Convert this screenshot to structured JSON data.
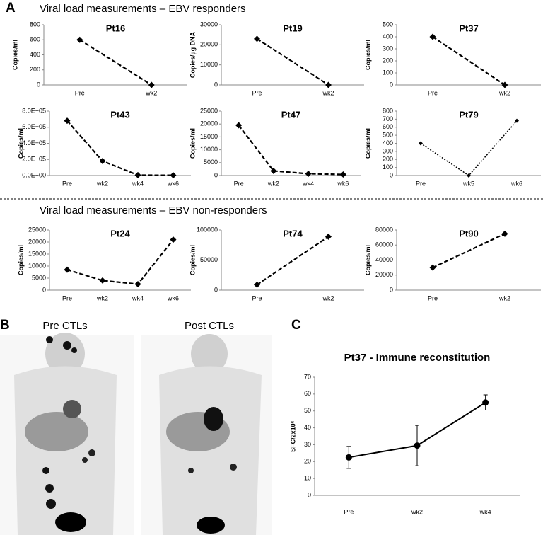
{
  "labels": {
    "panel_a": "A",
    "panel_b": "B",
    "panel_c": "C",
    "responders": "Viral load measurements – EBV responders",
    "non_responders": "Viral load measurements – EBV non-responders",
    "pre_ctls": "Pre CTLs",
    "post_ctls": "Post CTLs"
  },
  "chart_data": [
    {
      "type": "line",
      "title": "Pt16",
      "y_label": "Copies/ml",
      "categories": [
        "Pre",
        "wk2"
      ],
      "values": [
        600,
        0
      ],
      "ylim": [
        0,
        800
      ],
      "yticks": [
        0,
        200,
        400,
        600,
        800
      ],
      "color": "#000000",
      "line_style": "dashed",
      "marker": "diamond"
    },
    {
      "type": "line",
      "title": "Pt19",
      "y_label": "Copies/µg DNA",
      "categories": [
        "Pre",
        "wk2"
      ],
      "values": [
        23000,
        0
      ],
      "ylim": [
        0,
        30000
      ],
      "yticks": [
        0,
        10000,
        20000,
        30000
      ],
      "color": "#000000",
      "line_style": "dashed",
      "marker": "diamond"
    },
    {
      "type": "line",
      "title": "Pt37",
      "y_label": "Copies/ml",
      "categories": [
        "Pre",
        "wk2"
      ],
      "values": [
        400,
        0
      ],
      "ylim": [
        0,
        500
      ],
      "yticks": [
        0,
        100,
        200,
        300,
        400,
        500
      ],
      "color": "#000000",
      "line_style": "dashed",
      "marker": "diamond"
    },
    {
      "type": "line",
      "title": "Pt43",
      "y_label": "Copies/ml",
      "categories": [
        "Pre",
        "wk2",
        "wk4",
        "wk6"
      ],
      "values": [
        680000,
        180000,
        5000,
        3000
      ],
      "ylim": [
        0,
        800000
      ],
      "yticks": [
        {
          "value": 0,
          "label": "0.0E+00"
        },
        {
          "value": 200000,
          "label": "2.0E+05"
        },
        {
          "value": 400000,
          "label": "4.0E+05"
        },
        {
          "value": 600000,
          "label": "6.0E+05"
        },
        {
          "value": 800000,
          "label": "8.0E+05"
        }
      ],
      "color": "#000000",
      "line_style": "dashed",
      "marker": "diamond"
    },
    {
      "type": "line",
      "title": "Pt47",
      "y_label": "Copies/ml",
      "categories": [
        "Pre",
        "wk2",
        "wk4",
        "wk6"
      ],
      "values": [
        19500,
        1800,
        700,
        400
      ],
      "ylim": [
        0,
        25000
      ],
      "yticks": [
        0,
        5000,
        10000,
        15000,
        20000,
        25000
      ],
      "color": "#000000",
      "line_style": "dashed",
      "marker": "diamond"
    },
    {
      "type": "line",
      "title": "Pt79",
      "y_label": "Copies/ml",
      "categories": [
        "Pre",
        "wk5",
        "wk6"
      ],
      "values": [
        400,
        0,
        680
      ],
      "ylim": [
        0,
        800
      ],
      "yticks": [
        0,
        100,
        200,
        300,
        400,
        500,
        600,
        700,
        800
      ],
      "color": "#000000",
      "line_style": "dotted",
      "marker": "diamond"
    },
    {
      "type": "line",
      "title": "Pt24",
      "y_label": "Copies/ml",
      "categories": [
        "Pre",
        "wk2",
        "wk4",
        "wk6"
      ],
      "values": [
        8500,
        4000,
        2500,
        21000
      ],
      "ylim": [
        0,
        25000
      ],
      "yticks": [
        0,
        5000,
        10000,
        15000,
        20000,
        25000
      ],
      "color": "#000000",
      "line_style": "dashed",
      "marker": "diamond"
    },
    {
      "type": "line",
      "title": "Pt74",
      "y_label": "Copies/ml",
      "categories": [
        "Pre",
        "wk2"
      ],
      "values": [
        9000,
        89000
      ],
      "ylim": [
        0,
        100000
      ],
      "yticks": [
        0,
        50000,
        100000
      ],
      "color": "#000000",
      "line_style": "dashed",
      "marker": "diamond"
    },
    {
      "type": "line",
      "title": "Pt90",
      "y_label": "Copies/ml",
      "categories": [
        "Pre",
        "wk2"
      ],
      "values": [
        30000,
        75000
      ],
      "ylim": [
        0,
        80000
      ],
      "yticks": [
        0,
        20000,
        40000,
        60000,
        80000
      ],
      "color": "#000000",
      "line_style": "dashed",
      "marker": "diamond"
    },
    {
      "type": "line",
      "title": "Pt37 - Immune reconstitution",
      "y_label": "SFC/2x10⁵",
      "categories": [
        "Pre",
        "wk2",
        "wk4"
      ],
      "values": [
        22.5,
        29.5,
        55
      ],
      "errors": [
        6.5,
        12,
        4.5
      ],
      "ylim": [
        0,
        70
      ],
      "yticks": [
        0,
        10,
        20,
        30,
        40,
        50,
        60,
        70
      ],
      "color": "#000000",
      "line_style": "solid",
      "marker": "circle"
    }
  ]
}
